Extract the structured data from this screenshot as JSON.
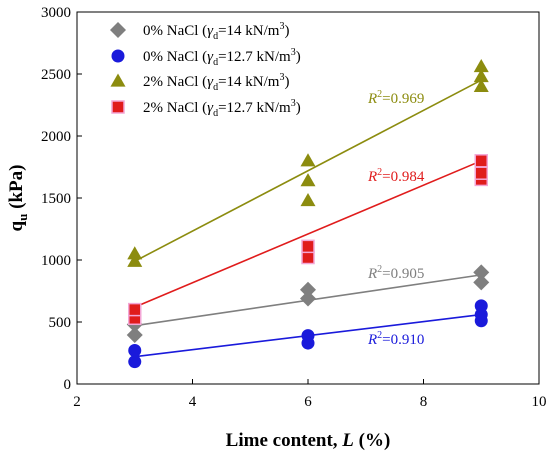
{
  "chart_data": {
    "type": "scatter",
    "xlabel_main": "Lime content, ",
    "xlabel_var": "L",
    "xlabel_unit": " (%)",
    "ylabel_main": "q",
    "ylabel_sub": "u",
    "ylabel_unit": " (kPa)",
    "xlim": [
      2,
      10
    ],
    "ylim": [
      0,
      3000
    ],
    "x_ticks": [
      2,
      4,
      6,
      8,
      10
    ],
    "y_ticks": [
      0,
      500,
      1000,
      1500,
      2000,
      2500,
      3000
    ],
    "grid": false,
    "legend_position": "top-left",
    "series": [
      {
        "name": "0% NaCl (γd=14 kN/m3)",
        "legend": {
          "prefix": "0% NaCl (",
          "gamma": "γ",
          "gamma_sub": "d",
          "mid": "=14 kN/m",
          "sup": "3",
          "close": ")"
        },
        "marker": "diamond",
        "color": "#7f7f7f",
        "points": [
          [
            3,
            395
          ],
          [
            3,
            480
          ],
          [
            6,
            690
          ],
          [
            6,
            760
          ],
          [
            9,
            820
          ],
          [
            9,
            900
          ]
        ],
        "fit": {
          "x": [
            3,
            9
          ],
          "y": [
            470,
            880
          ]
        },
        "r2": {
          "label": "R",
          "sup": "2",
          "value": "=0.905"
        }
      },
      {
        "name": "0% NaCl (γd=12.7 kN/m3)",
        "legend": {
          "prefix": "0% NaCl (",
          "gamma": "γ",
          "gamma_sub": "d",
          "mid": "=12.7 kN/m",
          "sup": "3",
          "close": ")"
        },
        "marker": "circle",
        "color": "#1a1adb",
        "points": [
          [
            3,
            180
          ],
          [
            3,
            270
          ],
          [
            6,
            330
          ],
          [
            6,
            390
          ],
          [
            9,
            510
          ],
          [
            9,
            560
          ],
          [
            9,
            630
          ]
        ],
        "fit": {
          "x": [
            3,
            9
          ],
          "y": [
            220,
            560
          ]
        },
        "r2": {
          "label": "R",
          "sup": "2",
          "value": "=0.910"
        }
      },
      {
        "name": "2% NaCl (γd=14 kN/m3)",
        "legend": {
          "prefix": "2% NaCl (",
          "gamma": "γ",
          "gamma_sub": "d",
          "mid": "=14 kN/m",
          "sup": "3",
          "close": ")"
        },
        "marker": "triangle",
        "color": "#8c8c0f",
        "points": [
          [
            3,
            990
          ],
          [
            3,
            1050
          ],
          [
            6,
            1480
          ],
          [
            6,
            1640
          ],
          [
            6,
            1800
          ],
          [
            9,
            2400
          ],
          [
            9,
            2480
          ],
          [
            9,
            2560
          ]
        ],
        "fit": {
          "x": [
            3,
            9
          ],
          "y": [
            990,
            2450
          ]
        },
        "r2": {
          "label": "R",
          "sup": "2",
          "value": "=0.969"
        }
      },
      {
        "name": "2% NaCl (γd=12.7 kN/m3)",
        "legend": {
          "prefix": "2% NaCl (",
          "gamma": "γ",
          "gamma_sub": "d",
          "mid": "=12.7 kN/m",
          "sup": "3",
          "close": ")"
        },
        "marker": "square",
        "color": "#e01c1c",
        "points": [
          [
            3,
            530
          ],
          [
            3,
            600
          ],
          [
            6,
            1020
          ],
          [
            6,
            1110
          ],
          [
            9,
            1650
          ],
          [
            9,
            1700
          ],
          [
            9,
            1800
          ]
        ],
        "fit": {
          "x": [
            3,
            9
          ],
          "y": [
            620,
            1800
          ]
        },
        "r2": {
          "label": "R",
          "sup": "2",
          "value": "=0.984"
        }
      }
    ]
  }
}
